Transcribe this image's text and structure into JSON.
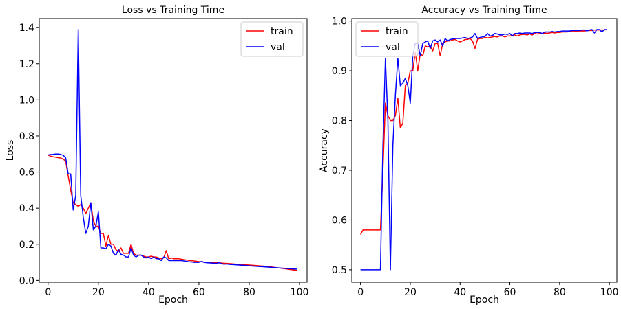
{
  "chart_data": [
    {
      "type": "line",
      "title": "Loss vs Training Time",
      "xlabel": "Epoch",
      "ylabel": "Loss",
      "xlim": [
        -3.5,
        103
      ],
      "ylim": [
        -0.01,
        1.45
      ],
      "xticks": [
        0,
        20,
        40,
        60,
        80,
        100
      ],
      "yticks": [
        0.0,
        0.2,
        0.4,
        0.6,
        0.8,
        1.0,
        1.2,
        1.4
      ],
      "ytick_labels": [
        "0.0",
        "0.2",
        "0.4",
        "0.6",
        "0.8",
        "1.0",
        "1.2",
        "1.4"
      ],
      "grid": false,
      "legend": "top-right",
      "series": [
        {
          "name": "train",
          "color": "#ff0000",
          "x": [
            0,
            1,
            2,
            3,
            4,
            5,
            6,
            7,
            8,
            9,
            10,
            11,
            12,
            13,
            14,
            15,
            16,
            17,
            18,
            19,
            20,
            21,
            22,
            23,
            24,
            25,
            26,
            27,
            28,
            29,
            30,
            31,
            32,
            33,
            34,
            35,
            36,
            37,
            38,
            39,
            40,
            41,
            42,
            43,
            44,
            45,
            46,
            47,
            48,
            49,
            50,
            51,
            52,
            53,
            54,
            55,
            56,
            57,
            58,
            59,
            60,
            61,
            62,
            63,
            64,
            65,
            66,
            67,
            68,
            69,
            70,
            71,
            72,
            73,
            74,
            75,
            76,
            77,
            78,
            79,
            80,
            81,
            82,
            83,
            84,
            85,
            86,
            87,
            88,
            89,
            90,
            91,
            92,
            93,
            94,
            95,
            96,
            97,
            98,
            99
          ],
          "y": [
            0.695,
            0.688,
            0.685,
            0.683,
            0.68,
            0.678,
            0.672,
            0.66,
            0.58,
            0.5,
            0.43,
            0.42,
            0.41,
            0.42,
            0.4,
            0.37,
            0.4,
            0.43,
            0.33,
            0.3,
            0.3,
            0.26,
            0.26,
            0.19,
            0.25,
            0.2,
            0.2,
            0.17,
            0.16,
            0.18,
            0.15,
            0.15,
            0.15,
            0.2,
            0.15,
            0.14,
            0.14,
            0.14,
            0.135,
            0.13,
            0.13,
            0.135,
            0.13,
            0.13,
            0.125,
            0.12,
            0.125,
            0.165,
            0.12,
            0.125,
            0.12,
            0.12,
            0.12,
            0.118,
            0.115,
            0.113,
            0.111,
            0.11,
            0.108,
            0.106,
            0.104,
            0.103,
            0.102,
            0.1,
            0.1,
            0.1,
            0.099,
            0.098,
            0.097,
            0.096,
            0.095,
            0.094,
            0.093,
            0.092,
            0.091,
            0.09,
            0.089,
            0.088,
            0.087,
            0.086,
            0.085,
            0.084,
            0.083,
            0.082,
            0.081,
            0.08,
            0.079,
            0.078,
            0.076,
            0.074,
            0.072,
            0.07,
            0.069,
            0.067,
            0.065,
            0.063,
            0.061,
            0.059,
            0.057,
            0.055
          ]
        },
        {
          "name": "val",
          "color": "#0000ff",
          "x": [
            0,
            1,
            2,
            3,
            4,
            5,
            6,
            7,
            8,
            9,
            10,
            11,
            12,
            13,
            14,
            15,
            16,
            17,
            18,
            19,
            20,
            21,
            22,
            23,
            24,
            25,
            26,
            27,
            28,
            29,
            30,
            31,
            32,
            33,
            34,
            35,
            36,
            37,
            38,
            39,
            40,
            41,
            42,
            43,
            44,
            45,
            46,
            47,
            48,
            49,
            50,
            51,
            52,
            53,
            54,
            55,
            56,
            57,
            58,
            59,
            60,
            61,
            62,
            63,
            64,
            65,
            66,
            67,
            68,
            69,
            70,
            71,
            72,
            73,
            74,
            75,
            76,
            77,
            78,
            79,
            80,
            81,
            82,
            83,
            84,
            85,
            86,
            87,
            88,
            89,
            90,
            91,
            92,
            93,
            94,
            95,
            96,
            97,
            98,
            99
          ],
          "y": [
            0.695,
            0.697,
            0.698,
            0.7,
            0.7,
            0.698,
            0.693,
            0.68,
            0.59,
            0.59,
            0.39,
            0.47,
            1.39,
            0.47,
            0.35,
            0.26,
            0.3,
            0.43,
            0.28,
            0.3,
            0.38,
            0.18,
            0.18,
            0.175,
            0.2,
            0.19,
            0.15,
            0.14,
            0.17,
            0.145,
            0.14,
            0.13,
            0.13,
            0.18,
            0.14,
            0.13,
            0.14,
            0.14,
            0.13,
            0.125,
            0.13,
            0.12,
            0.13,
            0.12,
            0.12,
            0.11,
            0.13,
            0.125,
            0.11,
            0.11,
            0.11,
            0.11,
            0.11,
            0.11,
            0.108,
            0.105,
            0.103,
            0.102,
            0.1,
            0.1,
            0.1,
            0.105,
            0.1,
            0.098,
            0.097,
            0.096,
            0.095,
            0.094,
            0.098,
            0.092,
            0.09,
            0.091,
            0.089,
            0.088,
            0.087,
            0.086,
            0.085,
            0.084,
            0.083,
            0.082,
            0.081,
            0.08,
            0.079,
            0.078,
            0.077,
            0.076,
            0.075,
            0.074,
            0.073,
            0.072,
            0.071,
            0.07,
            0.069,
            0.068,
            0.067,
            0.066,
            0.065,
            0.064,
            0.063,
            0.062
          ]
        }
      ]
    },
    {
      "type": "line",
      "title": "Accuracy vs Training Time",
      "xlabel": "Epoch",
      "ylabel": "Accuracy",
      "xlim": [
        -3.5,
        103
      ],
      "ylim": [
        0.475,
        1.005
      ],
      "xticks": [
        0,
        20,
        40,
        60,
        80,
        100
      ],
      "yticks": [
        0.5,
        0.6,
        0.7,
        0.8,
        0.9,
        1.0
      ],
      "ytick_labels": [
        "0.5",
        "0.6",
        "0.7",
        "0.8",
        "0.9",
        "1.0"
      ],
      "grid": false,
      "legend": "top-left",
      "series": [
        {
          "name": "train",
          "color": "#ff0000",
          "x": [
            0,
            1,
            2,
            3,
            4,
            5,
            6,
            7,
            8,
            9,
            10,
            11,
            12,
            13,
            14,
            15,
            16,
            17,
            18,
            19,
            20,
            21,
            22,
            23,
            24,
            25,
            26,
            27,
            28,
            29,
            30,
            31,
            32,
            33,
            34,
            35,
            36,
            37,
            38,
            39,
            40,
            41,
            42,
            43,
            44,
            45,
            46,
            47,
            48,
            49,
            50,
            51,
            52,
            53,
            54,
            55,
            56,
            57,
            58,
            59,
            60,
            61,
            62,
            63,
            64,
            65,
            66,
            67,
            68,
            69,
            70,
            71,
            72,
            73,
            74,
            75,
            76,
            77,
            78,
            79,
            80,
            81,
            82,
            83,
            84,
            85,
            86,
            87,
            88,
            89,
            90,
            91,
            92,
            93,
            94,
            95,
            96,
            97,
            98,
            99
          ],
          "y": [
            0.571,
            0.58,
            0.58,
            0.58,
            0.58,
            0.58,
            0.58,
            0.58,
            0.58,
            0.7,
            0.835,
            0.81,
            0.8,
            0.8,
            0.81,
            0.845,
            0.785,
            0.795,
            0.87,
            0.875,
            0.9,
            0.9,
            0.938,
            0.9,
            0.935,
            0.93,
            0.95,
            0.948,
            0.95,
            0.94,
            0.955,
            0.955,
            0.93,
            0.955,
            0.958,
            0.96,
            0.96,
            0.962,
            0.963,
            0.96,
            0.958,
            0.96,
            0.963,
            0.963,
            0.965,
            0.96,
            0.945,
            0.963,
            0.965,
            0.965,
            0.967,
            0.966,
            0.967,
            0.968,
            0.969,
            0.968,
            0.97,
            0.97,
            0.968,
            0.97,
            0.97,
            0.971,
            0.972,
            0.97,
            0.972,
            0.973,
            0.973,
            0.972,
            0.974,
            0.972,
            0.975,
            0.974,
            0.975,
            0.975,
            0.976,
            0.975,
            0.976,
            0.977,
            0.976,
            0.977,
            0.977,
            0.978,
            0.978,
            0.978,
            0.979,
            0.979,
            0.979,
            0.98,
            0.98,
            0.98,
            0.98,
            0.981,
            0.981,
            0.981,
            0.982,
            0.982,
            0.982,
            0.982,
            0.982,
            0.983
          ]
        },
        {
          "name": "val",
          "color": "#0000ff",
          "x": [
            0,
            1,
            2,
            3,
            4,
            5,
            6,
            7,
            8,
            9,
            10,
            11,
            12,
            13,
            14,
            15,
            16,
            17,
            18,
            19,
            20,
            21,
            22,
            23,
            24,
            25,
            26,
            27,
            28,
            29,
            30,
            31,
            32,
            33,
            34,
            35,
            36,
            37,
            38,
            39,
            40,
            41,
            42,
            43,
            44,
            45,
            46,
            47,
            48,
            49,
            50,
            51,
            52,
            53,
            54,
            55,
            56,
            57,
            58,
            59,
            60,
            61,
            62,
            63,
            64,
            65,
            66,
            67,
            68,
            69,
            70,
            71,
            72,
            73,
            74,
            75,
            76,
            77,
            78,
            79,
            80,
            81,
            82,
            83,
            84,
            85,
            86,
            87,
            88,
            89,
            90,
            91,
            92,
            93,
            94,
            95,
            96,
            97,
            98,
            99
          ],
          "y": [
            0.5,
            0.5,
            0.5,
            0.5,
            0.5,
            0.5,
            0.5,
            0.5,
            0.5,
            0.75,
            0.925,
            0.8,
            0.5,
            0.75,
            0.85,
            0.925,
            0.87,
            0.875,
            0.885,
            0.87,
            0.835,
            0.93,
            0.955,
            0.955,
            0.93,
            0.955,
            0.958,
            0.96,
            0.945,
            0.96,
            0.962,
            0.958,
            0.962,
            0.95,
            0.965,
            0.96,
            0.963,
            0.964,
            0.965,
            0.965,
            0.965,
            0.966,
            0.967,
            0.965,
            0.966,
            0.968,
            0.975,
            0.965,
            0.967,
            0.968,
            0.969,
            0.975,
            0.97,
            0.971,
            0.975,
            0.974,
            0.972,
            0.972,
            0.974,
            0.973,
            0.975,
            0.97,
            0.975,
            0.975,
            0.976,
            0.975,
            0.976,
            0.976,
            0.976,
            0.975,
            0.977,
            0.977,
            0.977,
            0.975,
            0.978,
            0.978,
            0.978,
            0.979,
            0.978,
            0.979,
            0.979,
            0.98,
            0.98,
            0.98,
            0.98,
            0.981,
            0.981,
            0.981,
            0.981,
            0.982,
            0.982,
            0.98,
            0.982,
            0.983,
            0.976,
            0.983,
            0.983,
            0.978,
            0.983,
            0.983
          ]
        }
      ]
    }
  ]
}
